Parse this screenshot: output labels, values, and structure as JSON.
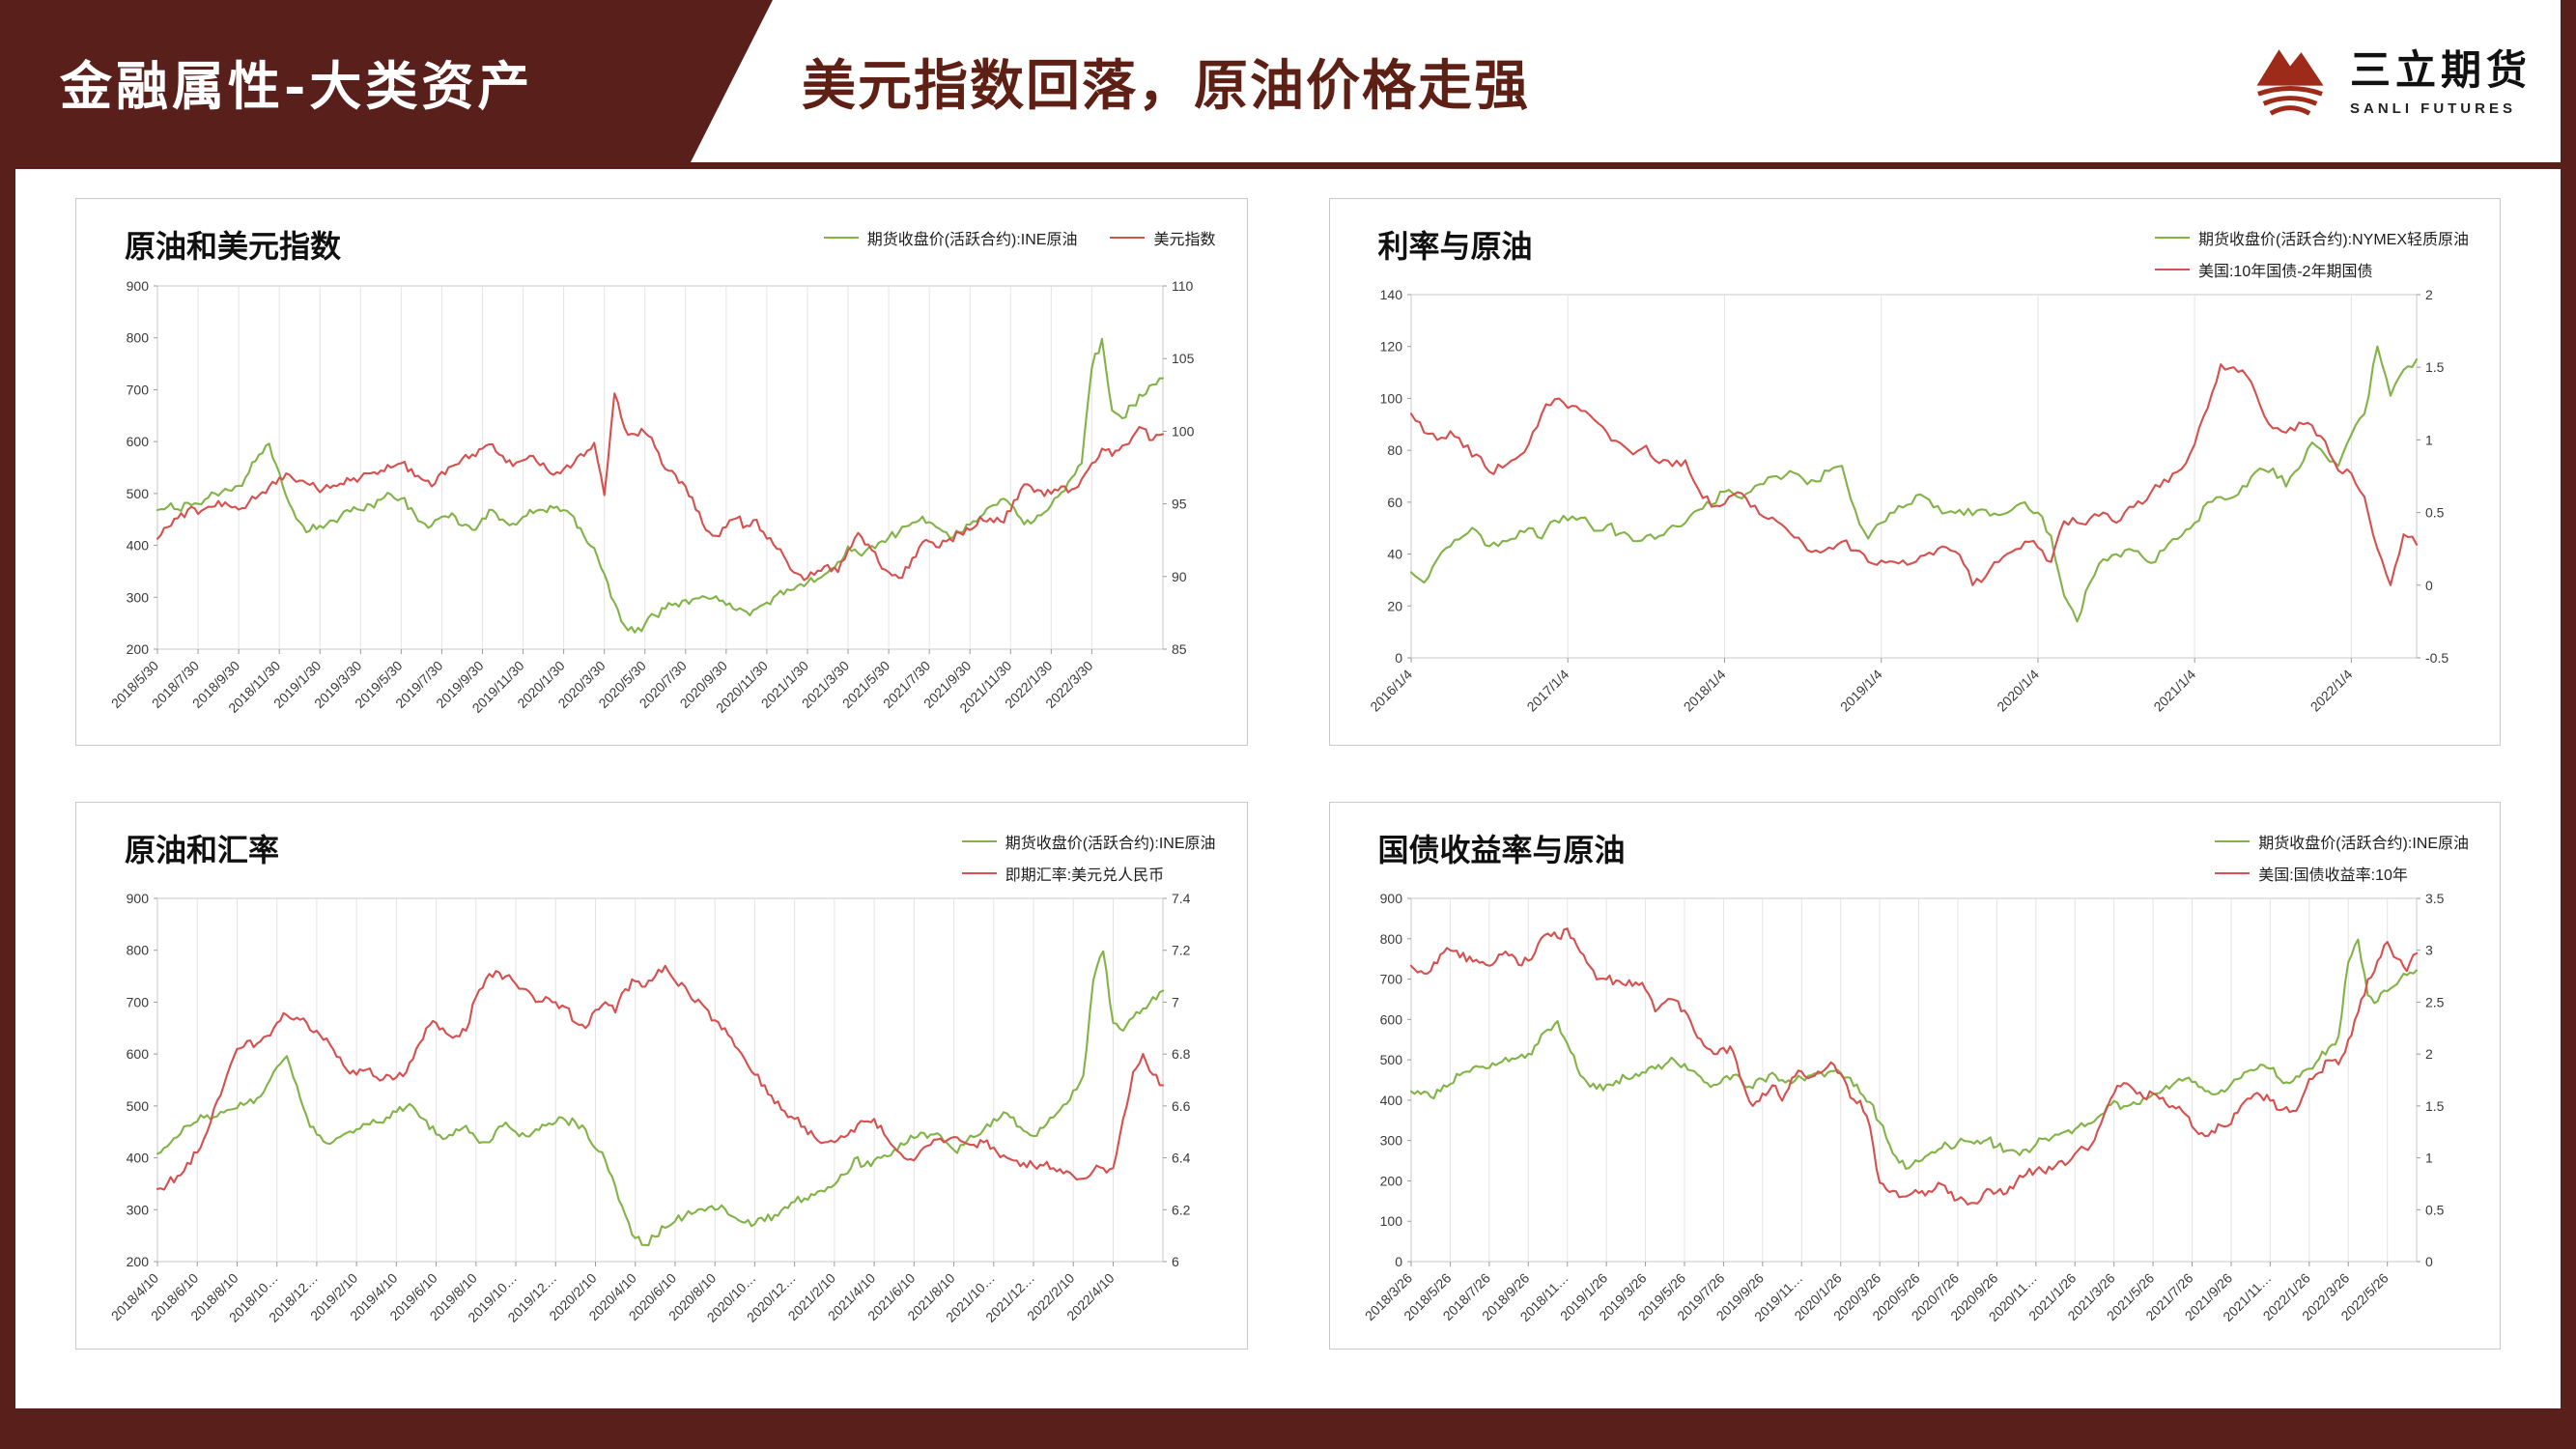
{
  "header": {
    "band_label": "金融属性-大类资产",
    "title": "美元指数回落，原油价格走强",
    "logo": {
      "name": "三立期货",
      "subname": "SANLI FUTURES"
    }
  },
  "colors": {
    "maroon": "#591f1a",
    "green": "#82b347",
    "red": "#d5504e"
  },
  "chart_data": [
    {
      "type": "line",
      "title": "原油和美元指数",
      "legend_layout": "row",
      "legend": [
        {
          "label": "期货收盘价(活跃合约):INE原油",
          "color": "#82b347"
        },
        {
          "label": "美元指数",
          "color": "#d5504e"
        }
      ],
      "left_axis": {
        "min": 200,
        "max": 900,
        "ticks": [
          "900",
          "800",
          "700",
          "600",
          "500",
          "400",
          "300",
          "200"
        ]
      },
      "right_axis": {
        "min": 85,
        "max": 110,
        "ticks": [
          "110",
          "105",
          "100",
          "95",
          "90",
          "85"
        ]
      },
      "x_labels": [
        "2018/5/30",
        "2018/7/30",
        "2018/9/30",
        "2018/11/30",
        "2019/1/30",
        "2019/3/30",
        "2019/5/30",
        "2019/7/30",
        "2019/9/30",
        "2019/11/30",
        "2020/1/30",
        "2020/3/30",
        "2020/5/30",
        "2020/7/30",
        "2020/9/30",
        "2020/11/30",
        "2021/1/30",
        "2021/3/30",
        "2021/5/30",
        "2021/7/30",
        "2021/9/30",
        "2021/11/30",
        "2022/1/30",
        "2022/3/30"
      ],
      "x_label_index_step": 4,
      "series": [
        {
          "name": "期货收盘价(活跃合约):INE原油",
          "axis": "left",
          "color": "#82b347",
          "values": [
            468,
            474,
            470,
            482,
            480,
            492,
            496,
            506,
            515,
            540,
            575,
            596,
            540,
            480,
            445,
            428,
            438,
            448,
            455,
            465,
            468,
            478,
            488,
            498,
            490,
            472,
            445,
            438,
            455,
            462,
            438,
            430,
            452,
            468,
            450,
            442,
            455,
            462,
            468,
            472,
            468,
            455,
            418,
            395,
            345,
            290,
            245,
            232,
            248,
            265,
            278,
            288,
            295,
            298,
            300,
            302,
            285,
            275,
            272,
            278,
            290,
            305,
            315,
            322,
            328,
            335,
            348,
            368,
            398,
            385,
            395,
            405,
            415,
            425,
            438,
            448,
            445,
            432,
            415,
            425,
            440,
            455,
            475,
            488,
            478,
            452,
            442,
            458,
            478,
            502,
            530,
            558,
            742,
            798,
            660,
            645,
            670,
            688,
            710,
            722
          ]
        },
        {
          "name": "美元指数",
          "axis": "right",
          "color": "#d5504e",
          "values": [
            92.6,
            93.4,
            94.0,
            94.6,
            94.3,
            94.8,
            95.2,
            94.9,
            94.6,
            95.1,
            95.6,
            96.2,
            96.8,
            97.0,
            96.6,
            96.3,
            95.8,
            96.1,
            96.4,
            96.6,
            96.8,
            97.1,
            97.3,
            97.5,
            97.8,
            97.4,
            96.7,
            96.2,
            97.2,
            97.6,
            98.1,
            98.4,
            98.8,
            99.1,
            98.3,
            97.6,
            98.0,
            98.3,
            97.8,
            97.0,
            97.4,
            97.8,
            98.3,
            99.2,
            95.6,
            102.6,
            100.2,
            99.8,
            99.9,
            98.9,
            97.4,
            97.0,
            96.2,
            94.6,
            93.2,
            92.8,
            93.4,
            94.0,
            93.5,
            93.9,
            92.6,
            91.9,
            91.0,
            90.2,
            89.9,
            90.4,
            90.8,
            90.3,
            91.8,
            93.0,
            92.2,
            91.0,
            90.3,
            89.9,
            90.6,
            92.0,
            92.4,
            92.0,
            92.6,
            93.0,
            93.2,
            94.1,
            94.0,
            93.8,
            94.5,
            96.0,
            96.2,
            95.9,
            95.7,
            96.2,
            96.0,
            96.7,
            97.8,
            98.8,
            98.3,
            99.0,
            99.6,
            100.2,
            99.4,
            99.8
          ]
        }
      ]
    },
    {
      "type": "line",
      "title": "利率与原油",
      "legend_layout": "column",
      "legend": [
        {
          "label": "期货收盘价(活跃合约):NYMEX轻质原油",
          "color": "#82b347"
        },
        {
          "label": "美国:10年国债-2年期国债",
          "color": "#d5504e"
        }
      ],
      "left_axis": {
        "min": 0,
        "max": 140,
        "ticks": [
          "140",
          "120",
          "100",
          "80",
          "60",
          "40",
          "20",
          "0"
        ]
      },
      "right_axis": {
        "min": -0.5,
        "max": 2,
        "ticks": [
          "2",
          "1.5",
          "1",
          "0.5",
          "0",
          "-0.5"
        ]
      },
      "x_labels": [
        "2016/1/4",
        "2017/1/4",
        "2018/1/4",
        "2019/1/4",
        "2020/1/4",
        "2021/1/4",
        "2022/1/4"
      ],
      "x_label_index_step": 12,
      "series": [
        {
          "name": "期货收盘价(活跃合约):NYMEX轻质原油",
          "axis": "left",
          "color": "#82b347",
          "values": [
            33,
            29,
            38,
            43,
            47,
            49,
            43,
            45,
            46,
            50,
            46,
            53,
            53,
            54,
            49,
            51,
            48,
            45,
            47,
            47,
            51,
            52,
            57,
            59,
            64,
            62,
            64,
            67,
            70,
            72,
            69,
            68,
            72,
            74,
            57,
            46,
            52,
            56,
            59,
            63,
            58,
            56,
            57,
            55,
            57,
            55,
            57,
            60,
            56,
            47,
            24,
            14,
            29,
            38,
            40,
            42,
            39,
            37,
            44,
            47,
            52,
            60,
            62,
            62,
            66,
            73,
            73,
            66,
            73,
            83,
            78,
            74,
            86,
            94,
            120,
            101,
            111,
            115
          ]
        },
        {
          "name": "美国:10年国债-2年期国债",
          "axis": "right",
          "color": "#d5504e",
          "values": [
            1.18,
            1.05,
            1.0,
            1.06,
            0.95,
            0.9,
            0.78,
            0.81,
            0.87,
            0.97,
            1.18,
            1.28,
            1.22,
            1.2,
            1.14,
            1.05,
            0.98,
            0.9,
            0.96,
            0.84,
            0.82,
            0.86,
            0.66,
            0.54,
            0.56,
            0.64,
            0.54,
            0.47,
            0.44,
            0.36,
            0.29,
            0.24,
            0.26,
            0.3,
            0.24,
            0.16,
            0.17,
            0.16,
            0.14,
            0.2,
            0.21,
            0.26,
            0.21,
            0.0,
            0.06,
            0.16,
            0.23,
            0.3,
            0.26,
            0.16,
            0.44,
            0.43,
            0.46,
            0.5,
            0.43,
            0.54,
            0.56,
            0.69,
            0.71,
            0.8,
            0.97,
            1.22,
            1.52,
            1.5,
            1.44,
            1.24,
            1.08,
            1.05,
            1.12,
            1.1,
            0.99,
            0.79,
            0.77,
            0.61,
            0.25,
            0.0,
            0.35,
            0.28
          ]
        }
      ]
    },
    {
      "type": "line",
      "title": "原油和汇率",
      "legend_layout": "column",
      "legend": [
        {
          "label": "期货收盘价(活跃合约):INE原油",
          "color": "#82b347"
        },
        {
          "label": "即期汇率:美元兑人民币",
          "color": "#d5504e"
        }
      ],
      "left_axis": {
        "min": 200,
        "max": 900,
        "ticks": [
          "900",
          "800",
          "700",
          "600",
          "500",
          "400",
          "300",
          "200"
        ]
      },
      "right_axis": {
        "min": 6,
        "max": 7.4,
        "ticks": [
          "7.4",
          "7.2",
          "7",
          "6.8",
          "6.6",
          "6.4",
          "6.2",
          "6"
        ]
      },
      "x_labels": [
        "2018/4/10",
        "2018/6/10",
        "2018/8/10",
        "2018/10…",
        "2018/12…",
        "2019/2/10",
        "2019/4/10",
        "2019/6/10",
        "2019/8/10",
        "2019/10…",
        "2019/12…",
        "2020/2/10",
        "2020/4/10",
        "2020/6/10",
        "2020/8/10",
        "2020/10…",
        "2020/12…",
        "2021/2/10",
        "2021/4/10",
        "2021/6/10",
        "2021/8/10",
        "2021/10…",
        "2021/12…",
        "2022/2/10",
        "2022/4/10"
      ],
      "x_label_index_step": 4,
      "series": [
        {
          "name": "期货收盘价(活跃合约):INE原油",
          "axis": "left",
          "color": "#82b347",
          "values": [
            408,
            422,
            440,
            462,
            470,
            482,
            480,
            492,
            496,
            506,
            515,
            540,
            575,
            596,
            540,
            480,
            445,
            428,
            438,
            448,
            455,
            465,
            468,
            478,
            488,
            498,
            490,
            472,
            445,
            438,
            455,
            462,
            438,
            430,
            452,
            468,
            450,
            442,
            455,
            462,
            468,
            472,
            468,
            455,
            418,
            395,
            345,
            290,
            245,
            232,
            248,
            265,
            278,
            288,
            295,
            298,
            300,
            302,
            285,
            275,
            272,
            278,
            290,
            305,
            315,
            322,
            328,
            335,
            348,
            368,
            398,
            385,
            395,
            405,
            415,
            425,
            438,
            448,
            445,
            432,
            415,
            425,
            440,
            455,
            475,
            488,
            478,
            452,
            442,
            458,
            478,
            502,
            530,
            558,
            742,
            798,
            660,
            645,
            670,
            688,
            710,
            722
          ]
        },
        {
          "name": "即期汇率:美元兑人民币",
          "axis": "right",
          "color": "#d5504e",
          "values": [
            6.28,
            6.3,
            6.33,
            6.38,
            6.42,
            6.5,
            6.62,
            6.72,
            6.82,
            6.85,
            6.84,
            6.87,
            6.92,
            6.95,
            6.94,
            6.92,
            6.89,
            6.86,
            6.79,
            6.74,
            6.72,
            6.74,
            6.71,
            6.72,
            6.71,
            6.73,
            6.82,
            6.9,
            6.92,
            6.88,
            6.87,
            6.89,
            7.02,
            7.09,
            7.12,
            7.1,
            7.07,
            7.05,
            7.0,
            7.02,
            7.0,
            6.98,
            6.92,
            6.9,
            6.97,
            7.0,
            6.96,
            7.05,
            7.08,
            7.06,
            7.1,
            7.14,
            7.08,
            7.06,
            7.0,
            6.98,
            6.93,
            6.9,
            6.83,
            6.78,
            6.72,
            6.68,
            6.61,
            6.58,
            6.55,
            6.52,
            6.48,
            6.46,
            6.46,
            6.48,
            6.5,
            6.54,
            6.55,
            6.49,
            6.44,
            6.4,
            6.39,
            6.44,
            6.47,
            6.46,
            6.48,
            6.46,
            6.45,
            6.46,
            6.44,
            6.41,
            6.39,
            6.38,
            6.37,
            6.37,
            6.36,
            6.34,
            6.33,
            6.32,
            6.35,
            6.36,
            6.36,
            6.55,
            6.73,
            6.8,
            6.72,
            6.68
          ]
        }
      ]
    },
    {
      "type": "line",
      "title": "国债收益率与原油",
      "legend_layout": "column",
      "legend": [
        {
          "label": "期货收盘价(活跃合约):INE原油",
          "color": "#82b347"
        },
        {
          "label": "美国:国债收益率:10年",
          "color": "#d5504e"
        }
      ],
      "left_axis": {
        "min": 0,
        "max": 900,
        "ticks": [
          "900",
          "800",
          "700",
          "600",
          "500",
          "400",
          "300",
          "200",
          "100",
          "0"
        ]
      },
      "right_axis": {
        "min": 0,
        "max": 3.5,
        "ticks": [
          "3.5",
          "3",
          "2.5",
          "2",
          "1.5",
          "1",
          "0.5",
          "0"
        ]
      },
      "x_labels": [
        "2018/3/26",
        "2018/5/26",
        "2018/7/26",
        "2018/9/26",
        "2018/11…",
        "2019/1/26",
        "2019/3/26",
        "2019/5/26",
        "2019/7/26",
        "2019/9/26",
        "2019/11…",
        "2020/1/26",
        "2020/3/26",
        "2020/5/26",
        "2020/7/26",
        "2020/9/26",
        "2020/11…",
        "2021/1/26",
        "2021/3/26",
        "2021/5/26",
        "2021/7/26",
        "2021/9/26",
        "2021/11…",
        "2022/1/26",
        "2022/3/26",
        "2022/5/26"
      ],
      "x_label_index_step": 4,
      "series": [
        {
          "name": "期货收盘价(活跃合约):INE原油",
          "axis": "left",
          "color": "#82b347",
          "values": [
            422,
            415,
            408,
            422,
            440,
            462,
            470,
            482,
            480,
            492,
            496,
            506,
            515,
            540,
            575,
            596,
            540,
            480,
            445,
            428,
            438,
            448,
            455,
            465,
            468,
            478,
            488,
            498,
            490,
            472,
            445,
            438,
            455,
            462,
            438,
            430,
            452,
            468,
            450,
            442,
            455,
            462,
            468,
            472,
            468,
            455,
            418,
            395,
            345,
            290,
            245,
            232,
            248,
            265,
            278,
            288,
            295,
            298,
            300,
            302,
            285,
            275,
            272,
            278,
            290,
            305,
            315,
            322,
            328,
            335,
            348,
            368,
            398,
            385,
            395,
            405,
            415,
            425,
            438,
            448,
            445,
            432,
            415,
            425,
            440,
            455,
            475,
            488,
            478,
            452,
            442,
            458,
            478,
            502,
            530,
            558,
            742,
            798,
            660,
            645,
            670,
            688,
            710,
            722
          ]
        },
        {
          "name": "美国:国债收益率:10年",
          "axis": "right",
          "color": "#d5504e",
          "values": [
            2.85,
            2.8,
            2.8,
            2.96,
            3.0,
            2.93,
            2.94,
            2.88,
            2.85,
            2.96,
            2.95,
            2.86,
            2.9,
            3.06,
            3.16,
            3.12,
            3.21,
            3.04,
            2.88,
            2.72,
            2.72,
            2.71,
            2.66,
            2.69,
            2.62,
            2.41,
            2.5,
            2.52,
            2.42,
            2.22,
            2.08,
            2.0,
            2.06,
            2.02,
            1.72,
            1.5,
            1.62,
            1.7,
            1.55,
            1.77,
            1.83,
            1.78,
            1.82,
            1.92,
            1.81,
            1.58,
            1.55,
            1.3,
            0.76,
            0.67,
            0.62,
            0.64,
            0.66,
            0.68,
            0.76,
            0.66,
            0.6,
            0.55,
            0.56,
            0.7,
            0.67,
            0.66,
            0.77,
            0.84,
            0.88,
            0.85,
            0.92,
            0.93,
            1.04,
            1.09,
            1.17,
            1.42,
            1.62,
            1.72,
            1.66,
            1.58,
            1.62,
            1.58,
            1.5,
            1.45,
            1.3,
            1.24,
            1.26,
            1.31,
            1.33,
            1.5,
            1.57,
            1.6,
            1.55,
            1.46,
            1.44,
            1.51,
            1.76,
            1.82,
            1.94,
            1.9,
            2.14,
            2.4,
            2.72,
            2.9,
            3.08,
            2.92,
            2.8,
            2.97
          ]
        }
      ]
    }
  ]
}
